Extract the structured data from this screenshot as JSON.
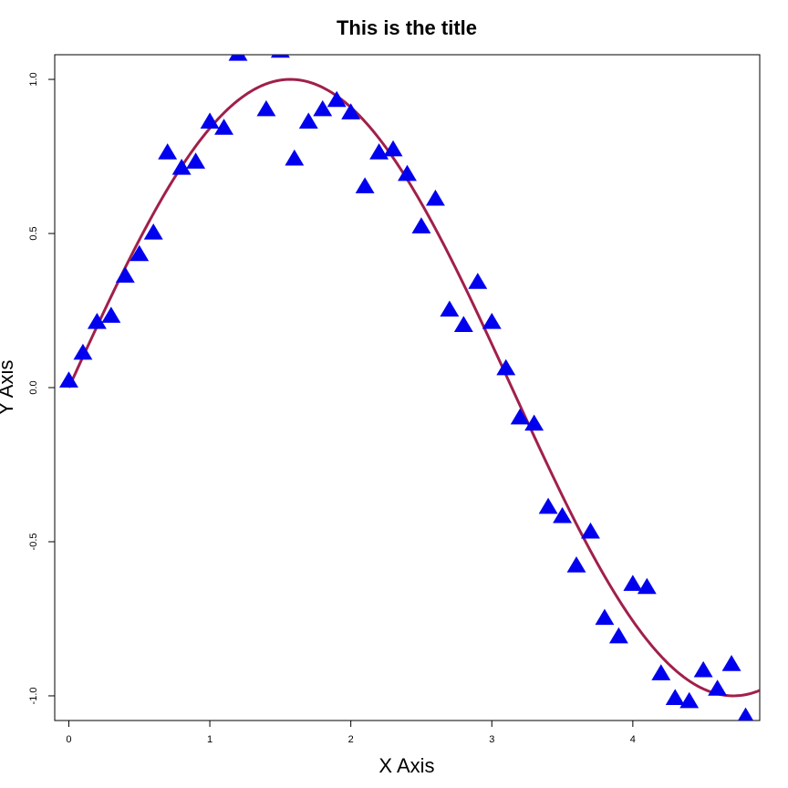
{
  "chart_data": {
    "type": "scatter",
    "title": "This is the title",
    "xlabel": "X Axis",
    "ylabel": "Y Axis",
    "xlim": [
      -0.1,
      4.9
    ],
    "ylim": [
      -1.08,
      1.08
    ],
    "xticks": [
      {
        "value": 0,
        "label": "0"
      },
      {
        "value": 1,
        "label": "1"
      },
      {
        "value": 2,
        "label": "2"
      },
      {
        "value": 3,
        "label": "3"
      },
      {
        "value": 4,
        "label": "4"
      }
    ],
    "yticks": [
      {
        "value": -1.0,
        "label": "-1.0"
      },
      {
        "value": -0.5,
        "label": "-0.5"
      },
      {
        "value": 0.0,
        "label": "0.0"
      },
      {
        "value": 0.5,
        "label": "0.5"
      },
      {
        "value": 1.0,
        "label": "1.0"
      }
    ],
    "grid": false,
    "series": [
      {
        "type": "scatter",
        "marker": "triangle",
        "color": "#0000ee",
        "x": [
          0.0,
          0.1,
          0.2,
          0.3,
          0.4,
          0.5,
          0.6,
          0.7,
          0.8,
          0.9,
          1.0,
          1.1,
          1.2,
          1.4,
          1.5,
          1.6,
          1.7,
          1.8,
          1.9,
          2.0,
          2.1,
          2.2,
          2.3,
          2.4,
          2.5,
          2.6,
          2.7,
          2.8,
          2.9,
          3.0,
          3.1,
          3.2,
          3.3,
          3.4,
          3.5,
          3.6,
          3.7,
          3.8,
          3.9,
          4.0,
          4.1,
          4.2,
          4.3,
          4.4,
          4.5,
          4.6,
          4.7,
          4.8
        ],
        "y": [
          0.02,
          0.11,
          0.21,
          0.23,
          0.36,
          0.43,
          0.5,
          0.76,
          0.71,
          0.73,
          0.86,
          0.84,
          1.08,
          0.9,
          1.09,
          0.74,
          0.86,
          0.9,
          0.93,
          0.89,
          0.65,
          0.76,
          0.77,
          0.69,
          0.52,
          0.61,
          0.25,
          0.2,
          0.34,
          0.21,
          0.06,
          -0.1,
          -0.12,
          -0.39,
          -0.42,
          -0.58,
          -0.47,
          -0.75,
          -0.81,
          -0.64,
          -0.65,
          -0.93,
          -1.01,
          -1.02,
          -0.92,
          -0.98,
          -0.9,
          -1.07
        ]
      },
      {
        "type": "line",
        "color": "#a0204a",
        "function": "sin",
        "x_range": [
          0,
          4.9
        ]
      }
    ]
  }
}
